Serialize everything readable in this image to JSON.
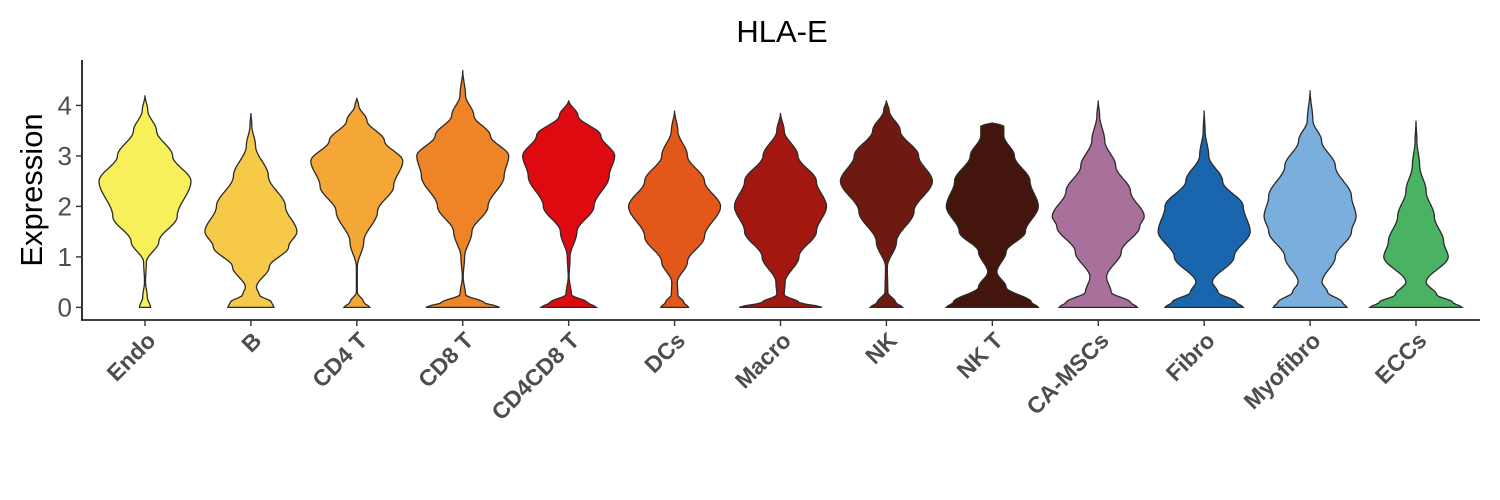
{
  "chart_data": {
    "type": "violin",
    "title": "HLA-E",
    "xlabel": "",
    "ylabel": "Expression",
    "ylim": [
      -0.25,
      4.9
    ],
    "yticks": [
      0,
      1,
      2,
      3,
      4
    ],
    "grid": false,
    "legend": "none",
    "categories": [
      "Endo",
      "B",
      "CD4 T",
      "CD8 T",
      "CD4CD8 T",
      "DCs",
      "Macro",
      "NK",
      "NK T",
      "CA-MSCs",
      "Fibro",
      "Myofibro",
      "ECCs"
    ],
    "colors": [
      "#F7F05A",
      "#F7C948",
      "#F4A636",
      "#EE8427",
      "#DE0A10",
      "#E4571B",
      "#A2170F",
      "#6E1A10",
      "#43150C",
      "#AA709C",
      "#1A66AE",
      "#7AAEDD",
      "#4AB263"
    ],
    "violins": [
      {
        "max": 4.2,
        "profile": [
          [
            0,
            0.12
          ],
          [
            0.2,
            0.05
          ],
          [
            0.5,
            0.01
          ],
          [
            0.9,
            0.03
          ],
          [
            1.3,
            0.3
          ],
          [
            1.8,
            0.7
          ],
          [
            2.5,
            1.0
          ],
          [
            3.0,
            0.6
          ],
          [
            3.5,
            0.25
          ],
          [
            3.9,
            0.06
          ],
          [
            4.2,
            0.0
          ]
        ]
      },
      {
        "max": 3.85,
        "profile": [
          [
            0,
            0.5
          ],
          [
            0.1,
            0.45
          ],
          [
            0.25,
            0.18
          ],
          [
            0.4,
            0.12
          ],
          [
            0.8,
            0.4
          ],
          [
            1.2,
            0.82
          ],
          [
            1.5,
            1.0
          ],
          [
            2.0,
            0.75
          ],
          [
            2.6,
            0.38
          ],
          [
            3.2,
            0.1
          ],
          [
            3.6,
            0.02
          ],
          [
            3.85,
            0.0
          ]
        ]
      },
      {
        "max": 4.15,
        "profile": [
          [
            0,
            0.28
          ],
          [
            0.1,
            0.15
          ],
          [
            0.3,
            0.01
          ],
          [
            0.8,
            0.01
          ],
          [
            1.3,
            0.15
          ],
          [
            1.9,
            0.45
          ],
          [
            2.4,
            0.8
          ],
          [
            2.9,
            1.0
          ],
          [
            3.3,
            0.6
          ],
          [
            3.7,
            0.22
          ],
          [
            4.0,
            0.04
          ],
          [
            4.15,
            0.0
          ]
        ]
      },
      {
        "max": 4.7,
        "profile": [
          [
            0,
            0.8
          ],
          [
            0.1,
            0.45
          ],
          [
            0.25,
            0.06
          ],
          [
            0.6,
            0.01
          ],
          [
            1.0,
            0.04
          ],
          [
            1.5,
            0.2
          ],
          [
            2.0,
            0.55
          ],
          [
            2.6,
            0.9
          ],
          [
            3.0,
            1.0
          ],
          [
            3.4,
            0.6
          ],
          [
            3.8,
            0.24
          ],
          [
            4.2,
            0.06
          ],
          [
            4.7,
            0.0
          ]
        ]
      },
      {
        "max": 4.1,
        "profile": [
          [
            0,
            0.6
          ],
          [
            0.1,
            0.4
          ],
          [
            0.25,
            0.06
          ],
          [
            0.6,
            0.01
          ],
          [
            1.0,
            0.03
          ],
          [
            1.5,
            0.18
          ],
          [
            2.0,
            0.55
          ],
          [
            2.6,
            0.88
          ],
          [
            3.0,
            1.0
          ],
          [
            3.4,
            0.7
          ],
          [
            3.8,
            0.2
          ],
          [
            4.1,
            0.0
          ]
        ]
      },
      {
        "max": 3.9,
        "profile": [
          [
            0,
            0.3
          ],
          [
            0.1,
            0.2
          ],
          [
            0.25,
            0.07
          ],
          [
            0.5,
            0.06
          ],
          [
            0.9,
            0.28
          ],
          [
            1.4,
            0.65
          ],
          [
            2.0,
            1.0
          ],
          [
            2.5,
            0.65
          ],
          [
            3.0,
            0.28
          ],
          [
            3.5,
            0.07
          ],
          [
            3.9,
            0.0
          ]
        ]
      },
      {
        "max": 3.85,
        "profile": [
          [
            0,
            0.9
          ],
          [
            0.1,
            0.4
          ],
          [
            0.25,
            0.08
          ],
          [
            0.5,
            0.1
          ],
          [
            1.0,
            0.4
          ],
          [
            1.5,
            0.78
          ],
          [
            2.0,
            1.0
          ],
          [
            2.5,
            0.78
          ],
          [
            3.0,
            0.38
          ],
          [
            3.5,
            0.08
          ],
          [
            3.85,
            0.0
          ]
        ]
      },
      {
        "max": 4.1,
        "profile": [
          [
            0,
            0.35
          ],
          [
            0.1,
            0.2
          ],
          [
            0.3,
            0.03
          ],
          [
            0.8,
            0.02
          ],
          [
            1.3,
            0.22
          ],
          [
            1.9,
            0.6
          ],
          [
            2.5,
            1.0
          ],
          [
            3.0,
            0.7
          ],
          [
            3.5,
            0.3
          ],
          [
            3.9,
            0.06
          ],
          [
            4.1,
            0.0
          ]
        ]
      },
      {
        "max": 3.65,
        "profile": [
          [
            0,
            1.0
          ],
          [
            0.1,
            0.85
          ],
          [
            0.4,
            0.3
          ],
          [
            0.7,
            0.1
          ],
          [
            1.1,
            0.3
          ],
          [
            1.5,
            0.72
          ],
          [
            2.0,
            1.0
          ],
          [
            2.5,
            0.82
          ],
          [
            3.0,
            0.48
          ],
          [
            3.4,
            0.25
          ],
          [
            3.6,
            0.25
          ],
          [
            3.65,
            0.0
          ]
        ]
      },
      {
        "max": 4.1,
        "profile": [
          [
            0,
            0.85
          ],
          [
            0.1,
            0.7
          ],
          [
            0.3,
            0.28
          ],
          [
            0.6,
            0.18
          ],
          [
            1.1,
            0.5
          ],
          [
            1.6,
            0.9
          ],
          [
            1.8,
            1.0
          ],
          [
            2.3,
            0.7
          ],
          [
            2.8,
            0.38
          ],
          [
            3.3,
            0.14
          ],
          [
            3.8,
            0.03
          ],
          [
            4.1,
            0.0
          ]
        ]
      },
      {
        "max": 3.9,
        "profile": [
          [
            0,
            0.85
          ],
          [
            0.1,
            0.7
          ],
          [
            0.3,
            0.3
          ],
          [
            0.5,
            0.18
          ],
          [
            1.0,
            0.65
          ],
          [
            1.5,
            1.0
          ],
          [
            2.0,
            0.85
          ],
          [
            2.5,
            0.4
          ],
          [
            3.0,
            0.1
          ],
          [
            3.5,
            0.02
          ],
          [
            3.9,
            0.0
          ]
        ]
      },
      {
        "max": 4.3,
        "profile": [
          [
            0,
            0.8
          ],
          [
            0.1,
            0.7
          ],
          [
            0.3,
            0.38
          ],
          [
            0.5,
            0.26
          ],
          [
            1.0,
            0.55
          ],
          [
            1.5,
            0.9
          ],
          [
            1.8,
            1.0
          ],
          [
            2.2,
            0.9
          ],
          [
            2.8,
            0.55
          ],
          [
            3.3,
            0.25
          ],
          [
            3.7,
            0.06
          ],
          [
            4.3,
            0.0
          ]
        ]
      },
      {
        "max": 3.7,
        "profile": [
          [
            0,
            1.0
          ],
          [
            0.1,
            0.8
          ],
          [
            0.25,
            0.45
          ],
          [
            0.5,
            0.22
          ],
          [
            1.0,
            0.7
          ],
          [
            1.3,
            0.6
          ],
          [
            1.8,
            0.4
          ],
          [
            2.3,
            0.22
          ],
          [
            2.8,
            0.08
          ],
          [
            3.3,
            0.02
          ],
          [
            3.7,
            0.0
          ]
        ]
      }
    ]
  }
}
